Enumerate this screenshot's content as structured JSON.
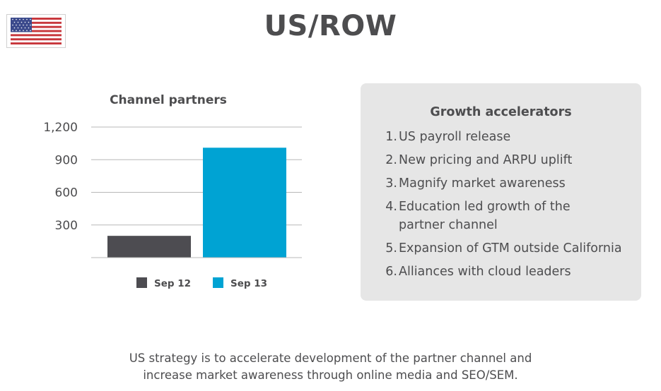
{
  "page": {
    "title": "US/ROW",
    "flag_icon": "us-flag-icon"
  },
  "chart_data": {
    "type": "bar",
    "title": "Channel partners",
    "categories": [
      "Sep 12",
      "Sep 13"
    ],
    "values": [
      200,
      1010
    ],
    "colors": [
      "#4d4c51",
      "#00a3d3"
    ],
    "yticks": [
      300,
      600,
      900,
      1200
    ],
    "ytick_labels": [
      "300",
      "600",
      "900",
      "1,200"
    ],
    "ylim": [
      0,
      1200
    ],
    "grid": true,
    "legend": "bottom",
    "xlabel": "",
    "ylabel": ""
  },
  "panel": {
    "title": "Growth accelerators",
    "items": [
      {
        "num": "1.",
        "text": "US payroll release"
      },
      {
        "num": "2.",
        "text": "New pricing and ARPU uplift"
      },
      {
        "num": "3.",
        "text": "Magnify market awareness"
      },
      {
        "num": "4.",
        "text": "Education led growth of the partner channel"
      },
      {
        "num": "5.",
        "text": "Expansion of GTM outside California"
      },
      {
        "num": "6.",
        "text": "Alliances with cloud leaders"
      }
    ]
  },
  "footer": {
    "line1": "US strategy is to accelerate development of the partner channel and",
    "line2": "increase market awareness through online media and SEO/SEM."
  }
}
